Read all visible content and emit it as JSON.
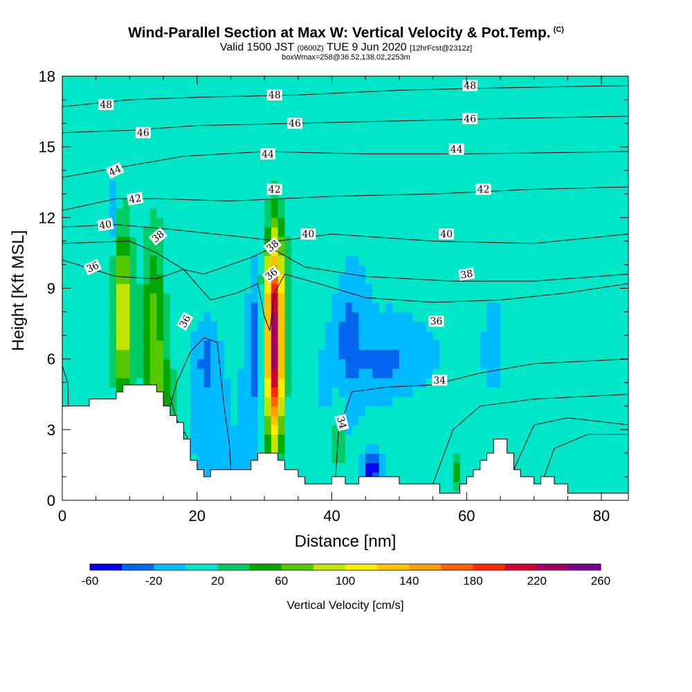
{
  "chart_data": {
    "type": "heatmap",
    "title": "Wind-Parallel Section at Max W: Vertical Velocity & Pot.Temp.",
    "copyright": "(C)",
    "subtitle_parts": {
      "valid": "Valid 1500 JST",
      "utc": "(0600Z)",
      "date": "TUE 9 Jun 2020",
      "fcst": "[12hrFcst@2312z]"
    },
    "subtitle2": "boxWmax=258@36.52,138.02,2253m",
    "xlabel": "Distance [nm]",
    "ylabel": "Height [Kft MSL]",
    "xlim": [
      0,
      84
    ],
    "ylim": [
      0,
      18
    ],
    "xticks": [
      "0",
      "20",
      "40",
      "60",
      "80"
    ],
    "yticks": [
      "0",
      "3",
      "6",
      "9",
      "12",
      "15",
      "18"
    ],
    "colorbar": {
      "label": "Vertical Velocity [cm/s]",
      "tick_labels": [
        "-60",
        "-20",
        "20",
        "60",
        "100",
        "140",
        "180",
        "220",
        "260"
      ],
      "bins": [
        -60,
        -40,
        -20,
        0,
        20,
        40,
        60,
        80,
        100,
        120,
        140,
        160,
        180,
        200,
        220,
        240,
        260
      ],
      "colors": [
        "#0000ee",
        "#0066ee",
        "#00bbff",
        "#00e6c8",
        "#00cc66",
        "#00a800",
        "#55c800",
        "#c0e600",
        "#ffee00",
        "#ffc400",
        "#ffa000",
        "#ff6400",
        "#ff2800",
        "#d2002e",
        "#a00064",
        "#780096"
      ]
    },
    "terrain": [
      [
        0,
        4.0
      ],
      [
        4,
        4.0
      ],
      [
        4,
        4.3
      ],
      [
        8,
        4.3
      ],
      [
        8,
        4.6
      ],
      [
        9,
        4.6
      ],
      [
        9,
        4.9
      ],
      [
        14,
        4.9
      ],
      [
        14,
        4.6
      ],
      [
        15,
        4.6
      ],
      [
        15,
        4.0
      ],
      [
        16,
        4.0
      ],
      [
        16,
        3.6
      ],
      [
        17,
        3.6
      ],
      [
        17,
        3.3
      ],
      [
        18,
        3.3
      ],
      [
        18,
        2.6
      ],
      [
        19,
        2.6
      ],
      [
        19,
        1.7
      ],
      [
        20,
        1.7
      ],
      [
        20,
        1.3
      ],
      [
        21,
        1.3
      ],
      [
        21,
        1.0
      ],
      [
        22,
        1.0
      ],
      [
        22,
        1.3
      ],
      [
        28,
        1.3
      ],
      [
        28,
        1.7
      ],
      [
        29,
        1.7
      ],
      [
        29,
        2.0
      ],
      [
        32,
        2.0
      ],
      [
        32,
        1.7
      ],
      [
        33,
        1.7
      ],
      [
        33,
        1.3
      ],
      [
        35,
        1.3
      ],
      [
        35,
        1.0
      ],
      [
        36,
        1.0
      ],
      [
        36,
        0.7
      ],
      [
        40,
        0.7
      ],
      [
        40,
        1.0
      ],
      [
        42,
        1.0
      ],
      [
        42,
        0.7
      ],
      [
        44,
        0.7
      ],
      [
        44,
        1.0
      ],
      [
        50,
        1.0
      ],
      [
        50,
        0.7
      ],
      [
        56,
        0.7
      ],
      [
        56,
        0.3
      ],
      [
        59,
        0.3
      ],
      [
        59,
        0.7
      ],
      [
        60,
        0.7
      ],
      [
        60,
        1.0
      ],
      [
        61,
        1.0
      ],
      [
        61,
        1.3
      ],
      [
        62,
        1.3
      ],
      [
        62,
        1.7
      ],
      [
        63,
        1.7
      ],
      [
        63,
        2.0
      ],
      [
        64,
        2.0
      ],
      [
        64,
        2.6
      ],
      [
        66,
        2.6
      ],
      [
        66,
        2.0
      ],
      [
        67,
        2.0
      ],
      [
        67,
        1.3
      ],
      [
        68,
        1.3
      ],
      [
        68,
        1.0
      ],
      [
        70,
        1.0
      ],
      [
        70,
        0.7
      ],
      [
        71,
        0.7
      ],
      [
        71,
        1.0
      ],
      [
        73,
        1.0
      ],
      [
        73,
        0.7
      ],
      [
        75,
        0.7
      ],
      [
        75,
        0.3
      ],
      [
        84,
        0.3
      ]
    ],
    "background_w": 0,
    "features": [
      {
        "x": 9,
        "y": 7.7,
        "sx": 1.0,
        "sy": 2.8,
        "w": 102
      },
      {
        "x": 13.5,
        "y": 6.7,
        "sx": 1.2,
        "sy": 3.0,
        "w": 72
      },
      {
        "x": 15.5,
        "y": 4.6,
        "sx": 0.9,
        "sy": 1.3,
        "w": 42
      },
      {
        "x": 31.5,
        "y": 6.7,
        "sx": 0.95,
        "sy": 3.1,
        "w": 235
      },
      {
        "x": 28.5,
        "y": 6.8,
        "sx": 0.8,
        "sy": 2.0,
        "w": -42
      },
      {
        "x": 21.5,
        "y": 5.8,
        "sx": 1.1,
        "sy": 1.2,
        "w": -32
      },
      {
        "x": 42.5,
        "y": 7.0,
        "sx": 1.3,
        "sy": 1.6,
        "w": -32
      },
      {
        "x": 46,
        "y": 1.3,
        "sx": 0.8,
        "sy": 0.5,
        "w": -62
      },
      {
        "x": 47.5,
        "y": 5.9,
        "sx": 2.6,
        "sy": 0.7,
        "w": -32
      },
      {
        "x": 64,
        "y": 7.0,
        "sx": 0.6,
        "sy": 0.7,
        "w": -28
      },
      {
        "x": 7.5,
        "y": 12.0,
        "sx": 0.4,
        "sy": 0.8,
        "w": -28
      },
      {
        "x": 25.5,
        "y": 8.5,
        "sx": 4.0,
        "sy": 1.4,
        "w": 12
      },
      {
        "x": 35.5,
        "y": 10.2,
        "sx": 4.5,
        "sy": 1.4,
        "w": 14
      },
      {
        "x": 15,
        "y": 13.5,
        "sx": 3.0,
        "sy": 4.0,
        "w": 10
      },
      {
        "x": 60,
        "y": 15.0,
        "sx": 5.0,
        "sy": 3.0,
        "w": 10
      },
      {
        "x": 55,
        "y": 2.0,
        "sx": 6.0,
        "sy": 1.2,
        "w": 11
      },
      {
        "x": 72,
        "y": 8.5,
        "sx": 4.5,
        "sy": 1.2,
        "w": 11
      },
      {
        "x": 81,
        "y": 2.0,
        "sx": 3.0,
        "sy": 1.0,
        "w": 12
      },
      {
        "x": 41,
        "y": 2.6,
        "sx": 0.5,
        "sy": 1.1,
        "w": 42
      },
      {
        "x": 58.5,
        "y": 1.2,
        "sx": 0.5,
        "sy": 0.5,
        "w": 42
      },
      {
        "x": 4,
        "y": 8.0,
        "sx": 2.5,
        "sy": 2.0,
        "w": 10
      }
    ],
    "isentropes": [
      {
        "points": [
          [
            0,
            10.2
          ],
          [
            8,
            9.5
          ],
          [
            14,
            9.4
          ],
          [
            18,
            9.8
          ],
          [
            22,
            8.5
          ],
          [
            26,
            8.8
          ],
          [
            29,
            9.2
          ],
          [
            30,
            7.8
          ],
          [
            30.8,
            7.2
          ],
          [
            31.5,
            8.8
          ],
          [
            33,
            9.6
          ],
          [
            38,
            9.2
          ],
          [
            45,
            8.6
          ],
          [
            55,
            8.4
          ],
          [
            65,
            8.5
          ],
          [
            75,
            8.8
          ],
          [
            84,
            9.2
          ]
        ],
        "labels": [
          {
            "x": 4.5,
            "y": 9.9,
            "text": "36",
            "angle": 25
          },
          {
            "x": 31.0,
            "y": 9.6,
            "text": "36",
            "angle": 40
          }
        ]
      },
      {
        "points": [
          [
            0,
            10.9
          ],
          [
            10,
            11.0
          ],
          [
            14,
            10.5
          ],
          [
            18,
            9.8
          ],
          [
            21,
            9.6
          ],
          [
            28,
            10.3
          ],
          [
            31,
            10.7
          ],
          [
            36,
            9.9
          ],
          [
            45,
            9.5
          ],
          [
            58,
            9.3
          ],
          [
            70,
            9.3
          ],
          [
            84,
            9.6
          ]
        ],
        "labels": [
          {
            "x": 14.2,
            "y": 11.2,
            "text": "38",
            "angle": 40
          },
          {
            "x": 31.2,
            "y": 10.8,
            "text": "38",
            "angle": 40
          },
          {
            "x": 60,
            "y": 9.6,
            "text": "38",
            "angle": 10
          }
        ]
      },
      {
        "points": [
          [
            0,
            11.6
          ],
          [
            8,
            11.7
          ],
          [
            16,
            11.5
          ],
          [
            26,
            11.2
          ],
          [
            32,
            11.0
          ],
          [
            40,
            11.3
          ],
          [
            55,
            11.0
          ],
          [
            70,
            10.9
          ],
          [
            84,
            11.3
          ]
        ],
        "labels": [
          {
            "x": 6.4,
            "y": 11.7,
            "text": "40",
            "angle": 10
          },
          {
            "x": 36.5,
            "y": 11.3,
            "text": "40",
            "angle": 0
          },
          {
            "x": 57,
            "y": 11.3,
            "text": "40",
            "angle": 0
          }
        ]
      },
      {
        "points": [
          [
            0,
            12.3
          ],
          [
            8,
            12.8
          ],
          [
            14,
            12.8
          ],
          [
            25,
            12.7
          ],
          [
            40,
            12.9
          ],
          [
            55,
            13.0
          ],
          [
            70,
            13.2
          ],
          [
            84,
            13.3
          ]
        ],
        "labels": [
          {
            "x": 10.8,
            "y": 12.8,
            "text": "42",
            "angle": 10
          },
          {
            "x": 31.5,
            "y": 13.2,
            "text": "42",
            "angle": 0
          },
          {
            "x": 62.5,
            "y": 13.2,
            "text": "42",
            "angle": 0
          }
        ]
      },
      {
        "points": [
          [
            0,
            13.7
          ],
          [
            8,
            14.1
          ],
          [
            18,
            14.6
          ],
          [
            30,
            14.8
          ],
          [
            45,
            14.7
          ],
          [
            60,
            14.7
          ],
          [
            84,
            14.8
          ]
        ],
        "labels": [
          {
            "x": 7.8,
            "y": 14.0,
            "text": "44",
            "angle": 25
          },
          {
            "x": 30.5,
            "y": 14.7,
            "text": "44",
            "angle": 0
          },
          {
            "x": 58.5,
            "y": 14.9,
            "text": "44",
            "angle": 0
          }
        ]
      },
      {
        "points": [
          [
            0,
            15.6
          ],
          [
            10,
            15.7
          ],
          [
            20,
            15.9
          ],
          [
            35,
            16.0
          ],
          [
            50,
            16.1
          ],
          [
            65,
            16.2
          ],
          [
            84,
            16.3
          ]
        ],
        "labels": [
          {
            "x": 12.0,
            "y": 15.6,
            "text": "46",
            "angle": 0
          },
          {
            "x": 34.5,
            "y": 16.0,
            "text": "46",
            "angle": 0
          },
          {
            "x": 60.5,
            "y": 16.2,
            "text": "46",
            "angle": 0
          }
        ]
      },
      {
        "points": [
          [
            0,
            16.7
          ],
          [
            10,
            17.0
          ],
          [
            20,
            17.1
          ],
          [
            35,
            17.2
          ],
          [
            50,
            17.4
          ],
          [
            65,
            17.5
          ],
          [
            84,
            17.6
          ]
        ],
        "labels": [
          {
            "x": 6.5,
            "y": 16.8,
            "text": "48",
            "angle": 0
          },
          {
            "x": 31.5,
            "y": 17.2,
            "text": "48",
            "angle": 0
          },
          {
            "x": 60.5,
            "y": 17.6,
            "text": "48",
            "angle": 0
          }
        ]
      },
      {
        "points": [
          [
            16,
            4.4
          ],
          [
            17,
            3.4
          ],
          [
            18.5,
            2.7
          ],
          [
            19,
            1.8
          ]
        ],
        "labels": [
          {
            "x": 18.2,
            "y": 7.6,
            "text": "36",
            "angle": 60
          }
        ]
      },
      {
        "points": [
          [
            40.5,
            0.7
          ],
          [
            41,
            3.0
          ],
          [
            43,
            4.6
          ],
          [
            48,
            4.8
          ],
          [
            55,
            4.9
          ],
          [
            62,
            5.4
          ],
          [
            70,
            5.8
          ],
          [
            84,
            6.0
          ]
        ],
        "labels": [
          {
            "x": 41.5,
            "y": 3.3,
            "text": "34",
            "angle": -75
          },
          {
            "x": 56,
            "y": 5.1,
            "text": "34",
            "angle": 0
          }
        ]
      },
      {
        "points": [
          [
            55,
            0.7
          ],
          [
            58,
            3.0
          ],
          [
            62,
            4.0
          ],
          [
            70,
            4.3
          ],
          [
            84,
            4.5
          ]
        ],
        "labels": [
          {
            "x": 55.5,
            "y": 7.6,
            "text": "36",
            "angle": 0
          }
        ]
      },
      {
        "points": [
          [
            67,
            1.3
          ],
          [
            70,
            3.2
          ],
          [
            75,
            3.5
          ],
          [
            84,
            3.2
          ]
        ],
        "labels": []
      },
      {
        "points": [
          [
            71.5,
            1.0
          ],
          [
            73,
            2.2
          ],
          [
            78,
            2.8
          ],
          [
            84,
            2.8
          ]
        ],
        "labels": []
      },
      {
        "points": [
          [
            0,
            5.7
          ],
          [
            0.8,
            5.0
          ],
          [
            0.9,
            4.0
          ]
        ],
        "labels": []
      },
      {
        "points": [
          [
            16,
            4.0
          ],
          [
            17,
            5.0
          ],
          [
            19,
            6.3
          ],
          [
            21,
            6.9
          ],
          [
            23,
            6.7
          ],
          [
            24,
            4.0
          ],
          [
            24.8,
            2.4
          ],
          [
            25,
            1.3
          ]
        ],
        "labels": []
      }
    ]
  }
}
